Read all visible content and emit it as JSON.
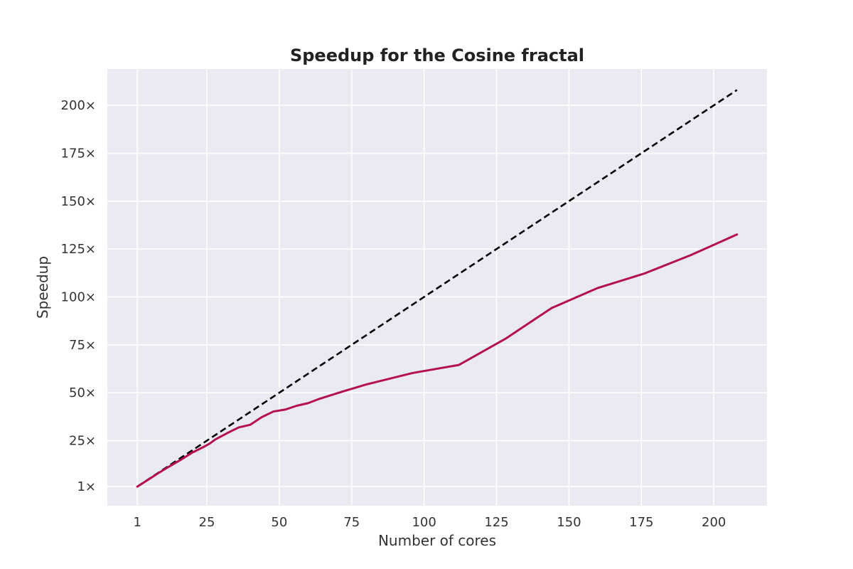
{
  "chart_data": {
    "type": "line",
    "title": "Speedup for the Cosine fractal",
    "xlabel": "Number of cores",
    "ylabel": "Speedup",
    "xlim": [
      -9.35,
      218.35
    ],
    "ylim": [
      -8.95,
      218.95
    ],
    "x_ticks": [
      1,
      25,
      50,
      75,
      100,
      125,
      150,
      175,
      200
    ],
    "y_ticks": [
      1,
      25,
      50,
      75,
      100,
      125,
      150,
      175,
      200
    ],
    "x_tick_labels": [
      "1",
      "25",
      "50",
      "75",
      "100",
      "125",
      "150",
      "175",
      "200"
    ],
    "y_tick_labels": [
      "1×",
      "25×",
      "50×",
      "75×",
      "100×",
      "125×",
      "150×",
      "175×",
      "200×"
    ],
    "grid": true,
    "background_color": "#EAEAF2",
    "series": [
      {
        "style": "dashed",
        "color": "#000000",
        "x": [
          1,
          208
        ],
        "y": [
          1,
          208
        ]
      },
      {
        "style": "solid",
        "color": "#B5104F",
        "x": [
          1,
          4,
          8,
          12,
          16,
          20,
          24,
          26,
          28,
          32,
          36,
          40,
          44,
          48,
          52,
          56,
          60,
          64,
          72,
          80,
          96,
          112,
          128,
          144,
          160,
          176,
          192,
          208
        ],
        "y": [
          1,
          3.9,
          7.8,
          11.5,
          15,
          18.8,
          21.8,
          23.5,
          25.7,
          28.9,
          31.9,
          33.3,
          37.3,
          40.2,
          41.2,
          43.2,
          44.6,
          46.9,
          50.7,
          54.3,
          60.3,
          64.5,
          78.1,
          94.2,
          104.7,
          112.2,
          121.8,
          132.6
        ]
      }
    ]
  }
}
